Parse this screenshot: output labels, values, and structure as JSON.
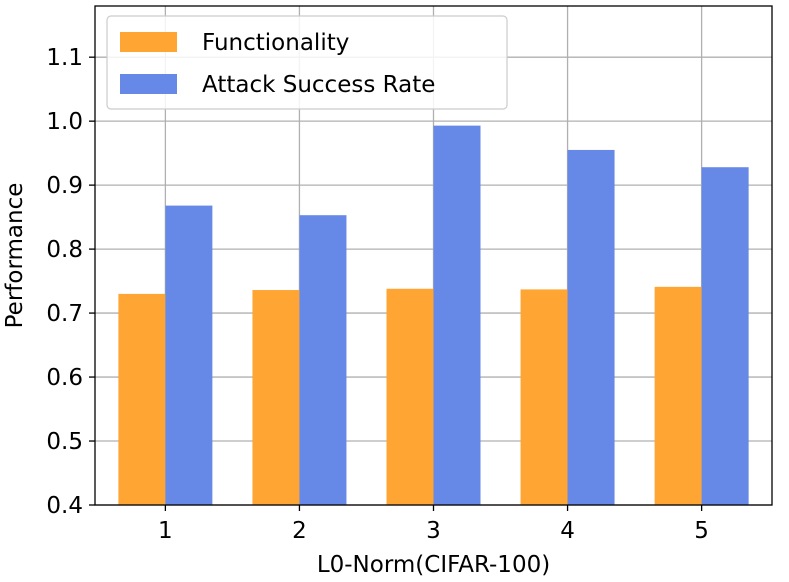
{
  "chart_data": {
    "type": "bar",
    "categories": [
      "1",
      "2",
      "3",
      "4",
      "5"
    ],
    "series": [
      {
        "name": "Functionality",
        "color": "#ffa533",
        "values": [
          0.73,
          0.736,
          0.738,
          0.737,
          0.741
        ]
      },
      {
        "name": "Attack Success Rate",
        "color": "#6688e6",
        "values": [
          0.868,
          0.853,
          0.993,
          0.955,
          0.928
        ]
      }
    ],
    "title": "",
    "xlabel": "L0-Norm(CIFAR-100)",
    "ylabel": "Performance",
    "ylim": [
      0.4,
      1.18
    ],
    "yticks": [
      "0.4",
      "0.5",
      "0.6",
      "0.7",
      "0.8",
      "0.9",
      "1.0",
      "1.1"
    ],
    "grid": true,
    "legend_position": "top-left"
  }
}
